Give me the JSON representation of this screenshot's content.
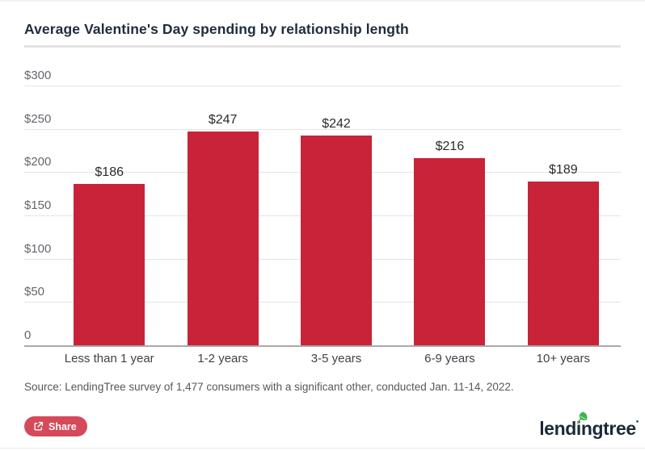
{
  "page": {
    "title": "Average Valentine's Day spending by relationship length",
    "source": "Source: LendingTree survey of 1,477 consumers with a significant other, conducted Jan. 11-14, 2022."
  },
  "chart_data": {
    "type": "bar",
    "title": "Average Valentine's Day spending by relationship length",
    "categories": [
      "Less than 1 year",
      "1-2 years",
      "3-5 years",
      "6-9 years",
      "10+ years"
    ],
    "values": [
      186,
      247,
      242,
      216,
      189
    ],
    "value_labels": [
      "$186",
      "$247",
      "$242",
      "$216",
      "$189"
    ],
    "xlabel": "",
    "ylabel": "",
    "ylim": [
      0,
      300
    ],
    "ytick_values": [
      300,
      250,
      200,
      150,
      100,
      50,
      0
    ],
    "ytick_labels": [
      "$300",
      "$250",
      "$200",
      "$150",
      "$100",
      "$50",
      "0"
    ],
    "grid": true,
    "legend": false,
    "bar_color": "#c82339"
  },
  "footer": {
    "share_button": {
      "label": "Share",
      "icon": "share-export-icon",
      "background": "#d5495b"
    },
    "logo": {
      "prefix": "lend",
      "mid": "in",
      "suffix": "gtree",
      "leaf_icon": "leaf-icon",
      "text_color": "#1c2a38",
      "leaf_color": "#3cb54a"
    }
  },
  "colors": {
    "bar": "#c82339",
    "grid_line": "#e4e4e4",
    "axis_line": "#a9a9a9",
    "title_text": "#1f2c3d",
    "tick_text": "#64676c",
    "value_text": "#2b2b2b",
    "source_text": "#55575c"
  }
}
